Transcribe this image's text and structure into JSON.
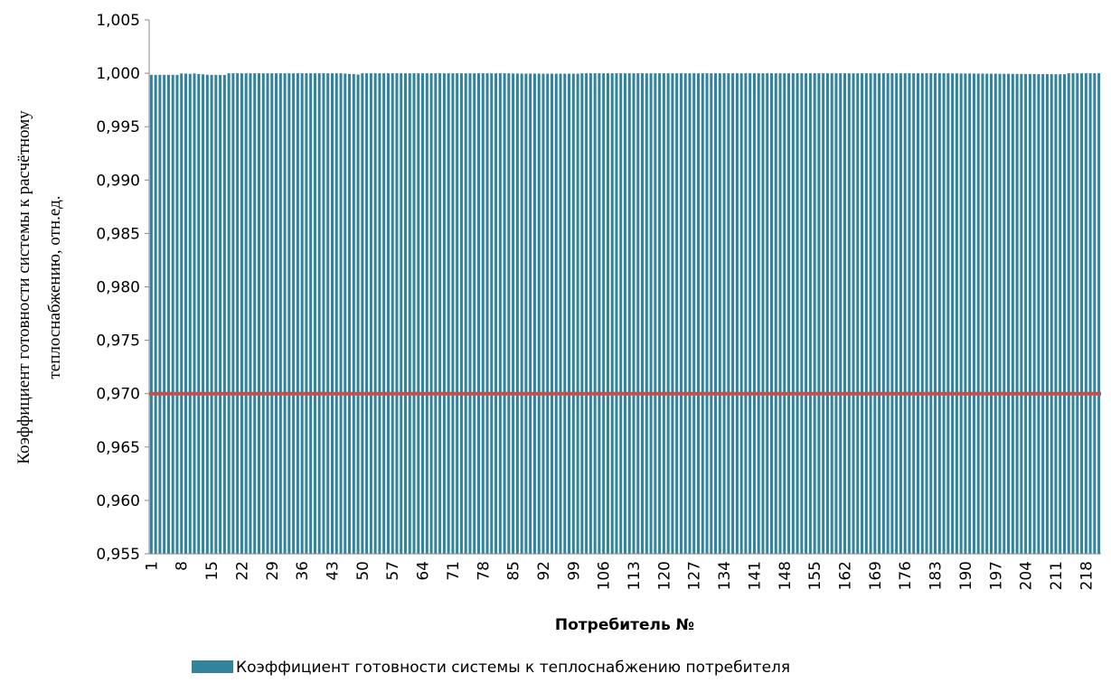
{
  "chart_data": {
    "type": "bar",
    "ylabel": [
      "Коэффициент готовности системы к расчётному",
      "теплоснабжению, отн.ед."
    ],
    "xlabel": "Потребитель №",
    "categories": [
      1,
      null,
      null,
      null,
      null,
      null,
      null,
      8,
      null,
      null,
      null,
      null,
      null,
      null,
      15,
      null,
      null,
      null,
      null,
      null,
      null,
      22,
      null,
      null,
      null,
      null,
      null,
      null,
      29,
      null,
      null,
      null,
      null,
      null,
      null,
      36,
      null,
      null,
      null,
      null,
      null,
      null,
      43,
      null,
      null,
      null,
      null,
      null,
      null,
      50,
      null,
      null,
      null,
      null,
      null,
      null,
      57,
      null,
      null,
      null,
      null,
      null,
      null,
      64,
      null,
      null,
      null,
      null,
      null,
      null,
      71,
      null,
      null,
      null,
      null,
      null,
      null,
      78,
      null,
      null,
      null,
      null,
      null,
      null,
      85,
      null,
      null,
      null,
      null,
      null,
      null,
      92,
      null,
      null,
      null,
      null,
      null,
      null,
      99,
      null,
      null,
      null,
      null,
      null,
      null,
      106,
      null,
      null,
      null,
      null,
      null,
      null,
      113,
      null,
      null,
      null,
      null,
      null,
      null,
      120,
      null,
      null,
      null,
      null,
      null,
      null,
      127,
      null,
      null,
      null,
      null,
      null,
      null,
      134,
      null,
      null,
      null,
      null,
      null,
      null,
      141,
      null,
      null,
      null,
      null,
      null,
      null,
      148,
      null,
      null,
      null,
      null,
      null,
      null,
      155,
      null,
      null,
      null,
      null,
      null,
      null,
      162,
      null,
      null,
      null,
      null,
      null,
      null,
      169,
      null,
      null,
      null,
      null,
      null,
      null,
      176,
      null,
      null,
      null,
      null,
      null,
      null,
      183,
      null,
      null,
      null,
      null,
      null,
      null,
      190,
      null,
      null,
      null,
      null,
      null,
      null,
      197,
      null,
      null,
      null,
      null,
      null,
      null,
      204,
      null,
      null,
      null,
      null,
      null,
      null,
      211,
      null,
      null,
      null,
      null,
      null,
      null,
      218,
      null,
      null,
      null
    ],
    "series": [
      {
        "name": "Коэффициент готовности системы к теплоснабжению потребителя",
        "color": "#31849b",
        "values": [
          0.99985,
          0.99985,
          0.99985,
          0.99985,
          0.99985,
          0.99985,
          0.99985,
          0.99998,
          0.99997,
          0.99995,
          0.99998,
          0.99993,
          0.9999,
          0.99986,
          0.99985,
          0.99985,
          0.99984,
          0.99984,
          1,
          1,
          1,
          1,
          1,
          1,
          1,
          1,
          1,
          1,
          1,
          1,
          1,
          1,
          1,
          1,
          1,
          1,
          1,
          1,
          1,
          1,
          1,
          1,
          1,
          1,
          1,
          0.99997,
          0.99994,
          0.99992,
          0.99988,
          1,
          1,
          1,
          1,
          1,
          1,
          1,
          1,
          1,
          1,
          1,
          1,
          1,
          1,
          1,
          1,
          1,
          1,
          1,
          1,
          1,
          1,
          1,
          1,
          1,
          1,
          1,
          1,
          1,
          1,
          1,
          1,
          1,
          1,
          1,
          0.99998,
          0.99998,
          0.99997,
          0.99997,
          0.99997,
          0.99997,
          0.99997,
          0.99996,
          0.99996,
          0.99996,
          0.99996,
          0.99996,
          0.99996,
          0.99996,
          0.99996,
          0.99996,
          1,
          1,
          1,
          1,
          1,
          1,
          1,
          1,
          1,
          1,
          1,
          1,
          1,
          1,
          1,
          1,
          1,
          1,
          1,
          1,
          1,
          1,
          1,
          1,
          1,
          1,
          1,
          1,
          1,
          1,
          1,
          1,
          1,
          1,
          1,
          1,
          1,
          1,
          1,
          1,
          1,
          1,
          1,
          1,
          1,
          1,
          1,
          1,
          1,
          1,
          1,
          1,
          1,
          1,
          1,
          1,
          1,
          1,
          1,
          1,
          1,
          1,
          1,
          1,
          1,
          1,
          1,
          1,
          1,
          1,
          1,
          1,
          1,
          1,
          1,
          1,
          1,
          1,
          1,
          1,
          1,
          1,
          1,
          1,
          1,
          1,
          0.99999,
          0.99999,
          0.99998,
          0.99998,
          0.99998,
          0.99997,
          0.99997,
          0.99997,
          0.99996,
          0.99996,
          0.99996,
          0.99995,
          0.99995,
          0.99995,
          0.99994,
          0.99994,
          0.99994,
          0.99993,
          0.99993,
          0.99993,
          0.99992,
          0.99992,
          0.99992,
          0.99992,
          0.99991,
          0.99991,
          0.99991,
          1,
          1,
          1,
          1,
          1,
          1,
          1,
          1
        ]
      }
    ],
    "reference_line": {
      "value": 0.97,
      "color": "#c0504d"
    },
    "ylim": [
      0.955,
      1.005
    ],
    "yticks": [
      {
        "value": 0.955,
        "label": "0,955"
      },
      {
        "value": 0.96,
        "label": "0,960"
      },
      {
        "value": 0.965,
        "label": "0,965"
      },
      {
        "value": 0.97,
        "label": "0,970"
      },
      {
        "value": 0.975,
        "label": "0,975"
      },
      {
        "value": 0.98,
        "label": "0,980"
      },
      {
        "value": 0.985,
        "label": "0,985"
      },
      {
        "value": 0.99,
        "label": "0,990"
      },
      {
        "value": 0.995,
        "label": "0,995"
      },
      {
        "value": 1,
        "label": "1,000"
      },
      {
        "value": 1.005,
        "label": "1,005"
      }
    ],
    "grid": false
  }
}
